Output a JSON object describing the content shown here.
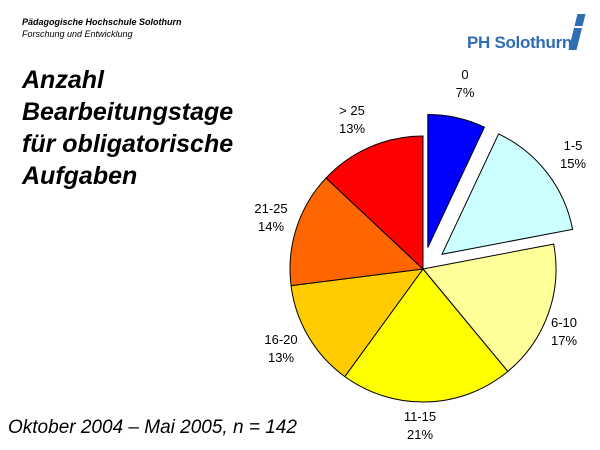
{
  "header": {
    "institution": "Pädagogische Hochschule Solothurn",
    "department": "Forschung und Entwicklung",
    "logo_text": "PH Solothurn"
  },
  "title_lines": [
    "Anzahl",
    "Bearbeitungstage",
    "für obligatorische",
    "Aufgaben"
  ],
  "footer": "Oktober 2004 – Mai 2005, n = 142",
  "chart_data": {
    "type": "pie",
    "title": "Anzahl Bearbeitungstage für obligatorische Aufgaben",
    "subtitle": "Oktober 2004 – Mai 2005, n = 142",
    "categories": [
      "0",
      "1-5",
      "6-10",
      "11-15",
      "16-20",
      "21-25",
      "> 25"
    ],
    "values": [
      7,
      15,
      17,
      21,
      13,
      14,
      13
    ],
    "unit": "%",
    "colors": [
      "#0000ff",
      "#ccffff",
      "#ffff99",
      "#ffff00",
      "#ffcc00",
      "#ff6600",
      "#ff0000"
    ],
    "exploded": [
      "0",
      "1-5"
    ],
    "start_angle": "12 o'clock, clockwise"
  },
  "labels": [
    {
      "name": "0",
      "pct": "7%"
    },
    {
      "name": "1-5",
      "pct": "15%"
    },
    {
      "name": "6-10",
      "pct": "17%"
    },
    {
      "name": "11-15",
      "pct": "21%"
    },
    {
      "name": "16-20",
      "pct": "13%"
    },
    {
      "name": "21-25",
      "pct": "14%"
    },
    {
      "name": "> 25",
      "pct": "13%"
    }
  ]
}
